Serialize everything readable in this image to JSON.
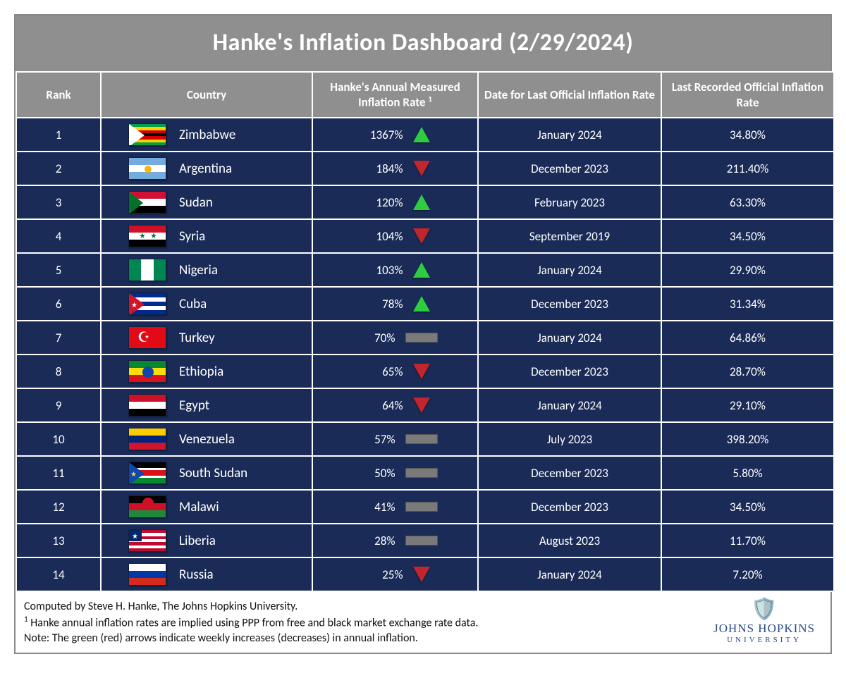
{
  "title": "Hanke's Inflation Dashboard (2/29/2024)",
  "columns": {
    "rank": "Rank",
    "country": "Country",
    "rate": "Hanke's Annual Measured Inflation Rate",
    "rate_sup": "1",
    "date": "Date for Last Official Inflation Rate",
    "official": "Last Recorded Official Inflation Rate"
  },
  "colors": {
    "header_bg": "#8f8f8f",
    "row_bg": "#1a2b57",
    "border": "#ffffff",
    "up": "#2ecc40",
    "down": "#c0262c",
    "flat": "#7a7a7a"
  },
  "rows": [
    {
      "rank": "1",
      "country": "Zimbabwe",
      "flag": "zimbabwe",
      "rate": "1367%",
      "trend": "up",
      "date": "January 2024",
      "official": "34.80%"
    },
    {
      "rank": "2",
      "country": "Argentina",
      "flag": "argentina",
      "rate": "184%",
      "trend": "down",
      "date": "December 2023",
      "official": "211.40%"
    },
    {
      "rank": "3",
      "country": "Sudan",
      "flag": "sudan",
      "rate": "120%",
      "trend": "up",
      "date": "February 2023",
      "official": "63.30%"
    },
    {
      "rank": "4",
      "country": "Syria",
      "flag": "syria",
      "rate": "104%",
      "trend": "down",
      "date": "September 2019",
      "official": "34.50%"
    },
    {
      "rank": "5",
      "country": "Nigeria",
      "flag": "nigeria",
      "rate": "103%",
      "trend": "up",
      "date": "January 2024",
      "official": "29.90%"
    },
    {
      "rank": "6",
      "country": "Cuba",
      "flag": "cuba",
      "rate": "78%",
      "trend": "up",
      "date": "December 2023",
      "official": "31.34%"
    },
    {
      "rank": "7",
      "country": "Turkey",
      "flag": "turkey",
      "rate": "70%",
      "trend": "flat",
      "date": "January 2024",
      "official": "64.86%"
    },
    {
      "rank": "8",
      "country": "Ethiopia",
      "flag": "ethiopia",
      "rate": "65%",
      "trend": "down",
      "date": "December 2023",
      "official": "28.70%"
    },
    {
      "rank": "9",
      "country": "Egypt",
      "flag": "egypt",
      "rate": "64%",
      "trend": "down",
      "date": "January 2024",
      "official": "29.10%"
    },
    {
      "rank": "10",
      "country": "Venezuela",
      "flag": "venezuela",
      "rate": "57%",
      "trend": "flat",
      "date": "July 2023",
      "official": "398.20%"
    },
    {
      "rank": "11",
      "country": "South Sudan",
      "flag": "south_sudan",
      "rate": "50%",
      "trend": "flat",
      "date": "December 2023",
      "official": "5.80%"
    },
    {
      "rank": "12",
      "country": "Malawi",
      "flag": "malawi",
      "rate": "41%",
      "trend": "flat",
      "date": "December 2023",
      "official": "34.50%"
    },
    {
      "rank": "13",
      "country": "Liberia",
      "flag": "liberia",
      "rate": "28%",
      "trend": "flat",
      "date": "August 2023",
      "official": "11.70%"
    },
    {
      "rank": "14",
      "country": "Russia",
      "flag": "russia",
      "rate": "25%",
      "trend": "down",
      "date": "January 2024",
      "official": "7.20%"
    }
  ],
  "footer": {
    "line1": "Computed by Steve H. Hanke, The Johns Hopkins University.",
    "line2_sup": "1",
    "line2": " Hanke annual inflation rates are implied using PPP from free and black market exchange rate data.",
    "line3": "Note: The green (red) arrows indicate weekly increases (decreases) in annual inflation.",
    "logo_name1": "JOHNS HOPKINS",
    "logo_name2": "UNIVERSITY"
  }
}
